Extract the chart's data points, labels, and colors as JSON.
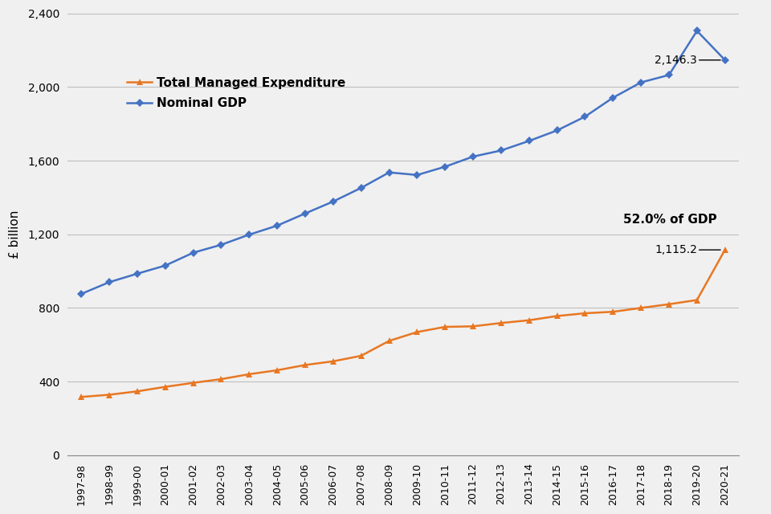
{
  "years": [
    "1997-98",
    "1998-99",
    "1999-00",
    "2000-01",
    "2001-02",
    "2002-03",
    "2003-04",
    "2004-05",
    "2005-06",
    "2006-07",
    "2007-08",
    "2008-09",
    "2009-10",
    "2010-11",
    "2011-12",
    "2012-13",
    "2013-14",
    "2014-15",
    "2015-16",
    "2016-17",
    "2017-18",
    "2018-19",
    "2019-20",
    "2020-21"
  ],
  "gdp_vals": [
    876.2,
    940.0,
    986.0,
    1030.0,
    1100.0,
    1143.0,
    1198.0,
    1247.0,
    1313.0,
    1378.0,
    1452.0,
    1536.0,
    1522.0,
    1567.0,
    1622.0,
    1655.0,
    1707.0,
    1764.0,
    1839.0,
    1942.0,
    2025.0,
    2065.0,
    2305.0,
    2146.3
  ],
  "tme_vals": [
    316.5,
    328.4,
    346.9,
    371.3,
    393.0,
    413.3,
    440.0,
    461.5,
    490.0,
    510.0,
    540.0,
    621.0,
    669.0,
    697.0,
    700.0,
    718.0,
    733.0,
    756.0,
    771.0,
    779.0,
    800.0,
    820.0,
    843.0,
    1115.2
  ],
  "tme_label": "1,115.2",
  "gdp_label": "2,146.3",
  "pct_label": "52.0% of GDP",
  "ylabel": "£ billion",
  "tme_legend": "Total Managed Expenditure",
  "gdp_legend": "Nominal GDP",
  "tme_color": "#E87722",
  "gdp_color": "#4472C4",
  "bg_color": "#F0F0F0",
  "grid_color": "#BEBEBE",
  "ylim": [
    0,
    2400
  ],
  "yticks": [
    0,
    400,
    800,
    1200,
    1600,
    2000,
    2400
  ]
}
